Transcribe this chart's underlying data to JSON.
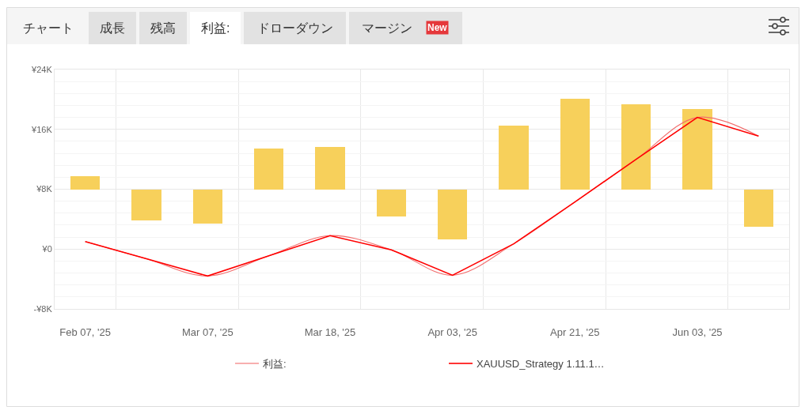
{
  "chart_data": {
    "type": "bar",
    "annotations": [
      "チャート",
      "成長",
      "残高",
      "利益:",
      "ドローダウン",
      "マージン",
      "New"
    ],
    "categories": [
      "Feb 07, '25",
      null,
      "Mar 07, '25",
      null,
      "Mar 18, '25",
      null,
      "Apr 03, '25",
      null,
      "Apr 21, '25",
      null,
      "Jun 03, '25",
      null
    ],
    "series": [
      {
        "color": "#f7d05b",
        "base": [
          8000,
          8000,
          8000,
          8000,
          8000,
          8000,
          8000,
          8000,
          8000,
          8000,
          8000,
          8000
        ],
        "values": [
          1700,
          -4200,
          -4600,
          5400,
          5600,
          -3600,
          -6700,
          8500,
          12100,
          11400,
          10700,
          -5000
        ]
      },
      {
        "type": "line",
        "name": "利益:",
        "color": "#f26d6d",
        "values": [
          1000,
          -1300,
          -3600,
          -900,
          1800,
          -100,
          -3500,
          700,
          6300,
          12000,
          17600,
          15100
        ]
      },
      {
        "type": "line",
        "name": "XAUUSD_Strategy 1.11.1…",
        "color": "#ff0000",
        "values": [
          1000,
          -1300,
          -3600,
          -900,
          1800,
          -100,
          -3500,
          700,
          6300,
          12000,
          17600,
          15100
        ]
      }
    ],
    "ylim": [
      -8000,
      24000
    ],
    "yticks": [
      {
        "value": -8000,
        "label": "-¥8K"
      },
      {
        "value": -6400,
        "label": null
      },
      {
        "value": -4800,
        "label": null
      },
      {
        "value": -3200,
        "label": null
      },
      {
        "value": -1600,
        "label": null
      },
      {
        "value": 0,
        "label": "¥0"
      },
      {
        "value": 1600,
        "label": null
      },
      {
        "value": 3200,
        "label": null
      },
      {
        "value": 4800,
        "label": null
      },
      {
        "value": 6400,
        "label": null
      },
      {
        "value": 8000,
        "label": "¥8K"
      },
      {
        "value": 9600,
        "label": null
      },
      {
        "value": 11200,
        "label": null
      },
      {
        "value": 12800,
        "label": null
      },
      {
        "value": 14400,
        "label": null
      },
      {
        "value": 16000,
        "label": "¥16K"
      },
      {
        "value": 17600,
        "label": null
      },
      {
        "value": 19200,
        "label": null
      },
      {
        "value": 20800,
        "label": null
      },
      {
        "value": 22400,
        "label": null
      },
      {
        "value": 24000,
        "label": "¥24K"
      }
    ],
    "grid": true,
    "legend": "bottom"
  }
}
